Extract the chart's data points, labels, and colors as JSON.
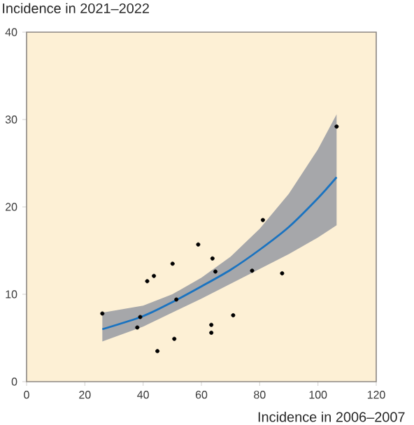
{
  "chart_data": {
    "type": "scatter",
    "xlabel": "Incidence in 2006–2007",
    "ylabel": "Incidence in 2021–2022",
    "xlim": [
      0,
      120
    ],
    "ylim": [
      0,
      40
    ],
    "xticks": [
      0,
      20,
      40,
      60,
      80,
      100,
      120
    ],
    "yticks": [
      0,
      10,
      20,
      30,
      40
    ],
    "grid": false,
    "series": [
      {
        "marker": "circle",
        "color": "#000000",
        "x": [
          26,
          39,
          38,
          41.4,
          43.7,
          44.9,
          50.1,
          50.7,
          51.4,
          58.9,
          63.8,
          64.8,
          63.4,
          63.4,
          70.9,
          77.4,
          81.1,
          87.7,
          106.4
        ],
        "values": [
          7.8,
          7.4,
          6.2,
          11.5,
          12.1,
          3.5,
          13.5,
          4.9,
          9.4,
          15.7,
          14.1,
          12.6,
          6.5,
          5.6,
          7.6,
          12.7,
          18.5,
          12.4,
          29.2
        ]
      },
      {
        "type": "line",
        "color": "#1a73c0",
        "marker": "none",
        "line_style": "solid",
        "x": [
          26,
          40,
          50,
          60,
          70,
          80,
          90,
          100,
          106.4
        ],
        "values": [
          6.0,
          7.5,
          9.1,
          10.9,
          12.8,
          15.1,
          17.7,
          21.0,
          23.4
        ],
        "lower": [
          4.6,
          6.3,
          7.9,
          9.5,
          11.2,
          12.9,
          14.6,
          16.5,
          17.9
        ],
        "upper": [
          7.9,
          8.7,
          10.0,
          11.9,
          14.3,
          17.5,
          21.5,
          26.6,
          30.6
        ]
      }
    ]
  }
}
